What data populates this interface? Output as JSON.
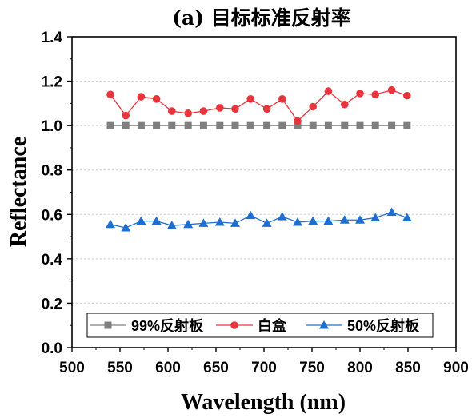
{
  "chart_data": {
    "type": "line",
    "title": "(a) 目标标准反射率",
    "xlabel": "Wavelength (nm)",
    "ylabel": "Reflectance",
    "xlim": [
      500,
      900
    ],
    "ylim": [
      0.0,
      1.4
    ],
    "xticks": [
      500,
      550,
      600,
      650,
      700,
      750,
      800,
      850,
      900
    ],
    "yticks": [
      0.0,
      0.2,
      0.4,
      0.6,
      0.8,
      1.0,
      1.2,
      1.4
    ],
    "xtick_labels": [
      "500",
      "550",
      "600",
      "650",
      "700",
      "750",
      "800",
      "850",
      "900"
    ],
    "ytick_labels": [
      "0.0",
      "0.2",
      "0.4",
      "0.6",
      "0.8",
      "1.0",
      "1.2",
      "1.4"
    ],
    "grid": "horizontal dotted",
    "legend_position": "bottom",
    "x": [
      540,
      556,
      572,
      588,
      604,
      621,
      637,
      654,
      670,
      686,
      703,
      719,
      735,
      751,
      767,
      784,
      800,
      816,
      833,
      849
    ],
    "series": [
      {
        "name": "99%反射板",
        "color": "#7f7f7f",
        "marker": "square",
        "values": [
          1.0,
          1.0,
          1.0,
          1.0,
          1.0,
          1.0,
          1.0,
          1.0,
          1.0,
          1.0,
          1.0,
          1.0,
          1.0,
          1.0,
          1.0,
          1.0,
          1.0,
          1.0,
          1.0,
          1.0
        ]
      },
      {
        "name": "白盒",
        "color": "#e8353d",
        "marker": "circle",
        "values": [
          1.14,
          1.045,
          1.13,
          1.12,
          1.065,
          1.055,
          1.065,
          1.08,
          1.075,
          1.12,
          1.075,
          1.12,
          1.02,
          1.085,
          1.155,
          1.095,
          1.145,
          1.14,
          1.16,
          1.135
        ]
      },
      {
        "name": "50%反射板",
        "color": "#1f6fd1",
        "marker": "triangle",
        "values": [
          0.555,
          0.54,
          0.57,
          0.57,
          0.55,
          0.555,
          0.56,
          0.565,
          0.56,
          0.595,
          0.56,
          0.59,
          0.565,
          0.57,
          0.57,
          0.575,
          0.575,
          0.585,
          0.61,
          0.585
        ]
      }
    ]
  }
}
